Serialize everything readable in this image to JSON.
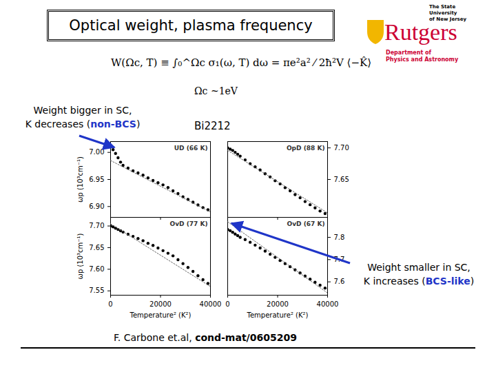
{
  "title": "Optical weight, plasma frequency",
  "formula": "W(Ωc, T) ≡ ∫₀^Ωc σ₁(ω, T) dω = πe²a² ⁄ 2ħ²V ⟨−K̂⟩",
  "cutoff": "Ωc ~1eV",
  "material": "Bi2212",
  "annotations": [
    {
      "line1": "Weight bigger in SC,",
      "line2_before": "K decreases (",
      "highlight": "non-BCS",
      "line2_after": ")",
      "color": "#1f35c8"
    },
    {
      "line1": "Weight smaller in SC,",
      "line2_before": "K increases (",
      "highlight": "BCS-like",
      "line2_after": ")",
      "color": "#1f35c8"
    }
  ],
  "citation": {
    "authors": "F. Carbone et.al, ",
    "ref": "cond-mat/0605209"
  },
  "logo": {
    "top_lines": [
      "The State University",
      "of New Jersey"
    ],
    "name": "Rutgers",
    "department_lines": [
      "Department of",
      "Physics and Astronomy"
    ],
    "color": "#cc0033"
  },
  "chart_data": [
    {
      "type": "scatter",
      "title": "UD (66 K)",
      "ylabel": "ωp (10³cm⁻¹)",
      "tick_labels": "y",
      "xlim": [
        0,
        40000
      ],
      "xticks": [
        0,
        20000,
        40000
      ],
      "ylim": [
        6.88,
        7.02
      ],
      "yticks": [
        {
          "value": 6.9,
          "label": "6.90"
        },
        {
          "value": 6.95,
          "label": "6.95"
        },
        {
          "value": 7.0,
          "label": "7.00"
        }
      ],
      "series": [
        {
          "type": "scatter",
          "marker": "circle",
          "color": "#000000",
          "x": [
            0,
            1000,
            2000,
            3000,
            4000,
            5000,
            7000,
            9000,
            11000,
            13000,
            15000,
            17000,
            19000,
            21000,
            23000,
            25000,
            27000,
            29000,
            31000,
            33000,
            35000,
            37000,
            39000
          ],
          "values": [
            7.012,
            7.005,
            6.998,
            6.99,
            6.982,
            6.976,
            6.971,
            6.966,
            6.962,
            6.958,
            6.953,
            6.948,
            6.944,
            6.94,
            6.935,
            6.929,
            6.924,
            6.918,
            6.913,
            6.908,
            6.903,
            6.898,
            6.894
          ]
        },
        {
          "type": "line",
          "line_style": "dotted",
          "color": "#666666",
          "x": [
            0,
            40000
          ],
          "values": [
            6.985,
            6.89
          ]
        }
      ]
    },
    {
      "type": "scatter",
      "title": "OpD (88 K)",
      "tick_labels": "y",
      "xlim": [
        0,
        40000
      ],
      "xticks": [
        0,
        20000,
        40000
      ],
      "ylim": [
        7.59,
        7.71
      ],
      "yticks": [
        {
          "value": 7.65,
          "label": "7.65"
        },
        {
          "value": 7.7,
          "label": "7.70"
        }
      ],
      "series": [
        {
          "type": "scatter",
          "marker": "circle",
          "color": "#000000",
          "x": [
            0,
            1000,
            2000,
            3000,
            4000,
            5000,
            7000,
            9000,
            11000,
            13000,
            15000,
            17000,
            19000,
            21000,
            23000,
            25000,
            27000,
            29000,
            31000,
            33000,
            35000,
            37000,
            39000
          ],
          "values": [
            7.7,
            7.698,
            7.696,
            7.693,
            7.69,
            7.687,
            7.681,
            7.675,
            7.67,
            7.665,
            7.659,
            7.654,
            7.648,
            7.643,
            7.637,
            7.632,
            7.626,
            7.621,
            7.615,
            7.61,
            7.605,
            7.6,
            7.596
          ]
        },
        {
          "type": "line",
          "line_style": "dotted",
          "color": "#666666",
          "x": [
            0,
            40000
          ],
          "values": [
            7.696,
            7.597
          ]
        }
      ]
    },
    {
      "type": "scatter",
      "title": "OvD (77 K)",
      "xlabel": "Temperature² (K²)",
      "ylabel": "ωp (10³cm⁻¹)",
      "xlim": [
        0,
        40000
      ],
      "xticks": [
        0,
        20000,
        40000
      ],
      "ylim": [
        7.54,
        7.72
      ],
      "yticks": [
        {
          "value": 7.55,
          "label": "7.55"
        },
        {
          "value": 7.6,
          "label": "7.60"
        },
        {
          "value": 7.65,
          "label": "7.65"
        },
        {
          "value": 7.7,
          "label": "7.70"
        }
      ],
      "series": [
        {
          "type": "scatter",
          "marker": "circle",
          "color": "#000000",
          "x": [
            0,
            1000,
            2000,
            3000,
            4000,
            5000,
            7000,
            9000,
            11000,
            13000,
            15000,
            17000,
            19000,
            21000,
            23000,
            25000,
            27000,
            29000,
            31000,
            33000,
            35000,
            37000,
            39000
          ],
          "values": [
            7.7,
            7.698,
            7.695,
            7.692,
            7.689,
            7.686,
            7.681,
            7.676,
            7.671,
            7.666,
            7.66,
            7.655,
            7.649,
            7.643,
            7.637,
            7.631,
            7.622,
            7.613,
            7.604,
            7.595,
            7.585,
            7.576,
            7.567
          ]
        },
        {
          "type": "line",
          "line_style": "dotted",
          "color": "#666666",
          "x": [
            0,
            40000
          ],
          "values": [
            7.705,
            7.56
          ]
        }
      ]
    },
    {
      "type": "scatter",
      "title": "OvD (67 K)",
      "xlabel": "Temperature² (K²)",
      "xlim": [
        0,
        40000
      ],
      "xticks": [
        0,
        20000,
        40000
      ],
      "ylim": [
        7.54,
        7.89
      ],
      "yticks": [
        7.6,
        7.7,
        7.8
      ],
      "series": [
        {
          "type": "scatter",
          "marker": "circle",
          "color": "#000000",
          "x": [
            0,
            1000,
            2000,
            3000,
            4000,
            5000,
            7000,
            9000,
            11000,
            13000,
            15000,
            17000,
            19000,
            21000,
            23000,
            25000,
            27000,
            29000,
            31000,
            33000,
            35000,
            37000,
            39000
          ],
          "values": [
            7.835,
            7.83,
            7.823,
            7.815,
            7.808,
            7.8,
            7.79,
            7.778,
            7.765,
            7.752,
            7.738,
            7.724,
            7.71,
            7.696,
            7.682,
            7.668,
            7.654,
            7.64,
            7.626,
            7.612,
            7.598,
            7.585,
            7.572
          ]
        },
        {
          "type": "line",
          "line_style": "dotted",
          "color": "#666666",
          "x": [
            0,
            40000
          ],
          "values": [
            7.87,
            7.55
          ]
        }
      ]
    }
  ]
}
